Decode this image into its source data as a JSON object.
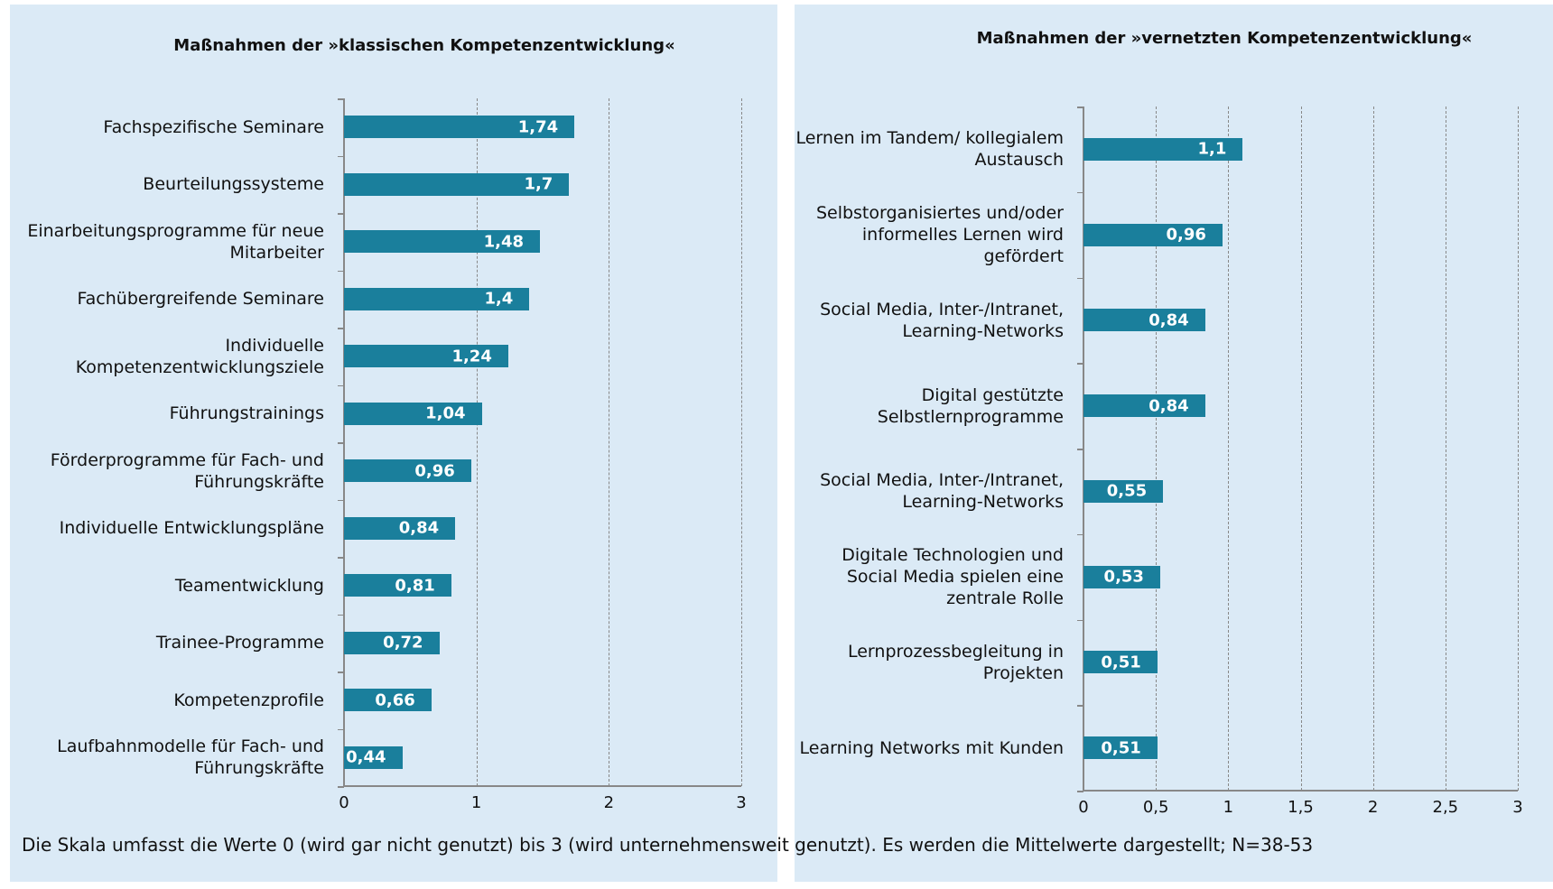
{
  "chart_data": [
    {
      "type": "hbar",
      "title": "Maßnahmen der »klassischen Kompetenzentwicklung«",
      "categories": [
        "Fachspezifische Seminare",
        "Beurteilungssysteme",
        "Einarbeitungsprogramme für neue Mitarbeiter",
        "Fachübergreifende Seminare",
        "Individuelle Kompetenzentwicklungsziele",
        "Führungstrainings",
        "Förderprogramme für Fach- und Führungskräfte",
        "Individuelle Entwicklungspläne",
        "Teamentwicklung",
        "Trainee-Programme",
        "Kompetenzprofile",
        "Laufbahnmodelle für Fach- und Führungskräfte"
      ],
      "values": [
        1.74,
        1.7,
        1.48,
        1.4,
        1.24,
        1.04,
        0.96,
        0.84,
        0.81,
        0.72,
        0.66,
        0.44
      ],
      "value_labels": [
        "1,74",
        "1,7",
        "1,48",
        "1,4",
        "1,24",
        "1,04",
        "0,96",
        "0,84",
        "0,81",
        "0,72",
        "0,66",
        "0,44"
      ],
      "color": "#1a7f9c",
      "xlim": [
        0,
        3
      ],
      "xticks": [
        0,
        1,
        2,
        3
      ],
      "grid": true
    },
    {
      "type": "hbar",
      "title": "Maßnahmen der »vernetzten Kompetenzentwicklung«",
      "categories": [
        "Lernen im Tandem/ kollegialem Austausch",
        "Selbstorganisiertes und/oder informelles Lernen wird gefördert",
        "Social Media, Inter-/Intranet, Learning-Networks",
        "Digital gestützte Selbstlernprogramme",
        "Social Media, Inter-/Intranet, Learning-Networks",
        "Digitale Technologien und Social Media spielen eine zentrale Rolle",
        "Lernprozessbegleitung in Projekten",
        "Learning Networks mit Kunden"
      ],
      "values": [
        1.1,
        0.96,
        0.84,
        0.84,
        0.55,
        0.53,
        0.51,
        0.51
      ],
      "value_labels": [
        "1,1",
        "0,96",
        "0,84",
        "0,84",
        "0,55",
        "0,53",
        "0,51",
        "0,51"
      ],
      "color": "#1a7f9c",
      "xlim": [
        0,
        3
      ],
      "xticks": [
        0,
        {
          "value": 0.5,
          "label": "0,5"
        },
        1,
        {
          "value": 1.5,
          "label": "1,5"
        },
        2,
        {
          "value": 2.5,
          "label": "2,5"
        },
        3
      ],
      "grid": true
    }
  ],
  "note": "Die Skala umfasst die Werte 0 (wird gar nicht genutzt) bis 3 (wird unternehmensweit genutzt). Es werden die Mittelwerte dargestellt; N=38-53"
}
